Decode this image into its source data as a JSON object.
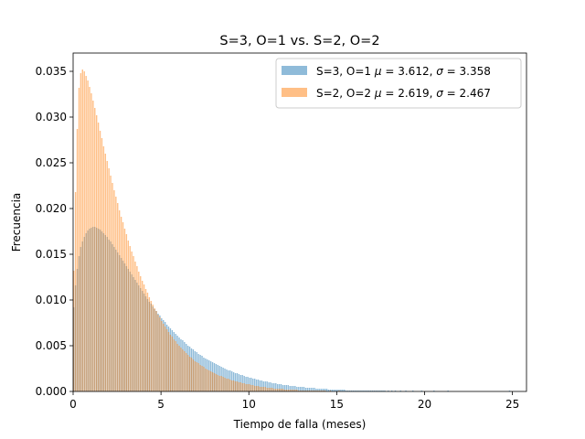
{
  "chart_data": {
    "type": "bar",
    "title": "S=3, O=1 vs. S=2, O=2",
    "xlabel": "Tiempo de falla (meses)",
    "ylabel": "Frecuencia",
    "xlim": [
      0,
      25.8
    ],
    "ylim": [
      0,
      0.037
    ],
    "xticks": [
      0,
      5,
      10,
      15,
      20,
      25
    ],
    "yticks": [
      0.0,
      0.005,
      0.01,
      0.015,
      0.02,
      0.025,
      0.03,
      0.035
    ],
    "xtick_labels": [
      "0",
      "5",
      "10",
      "15",
      "20",
      "25"
    ],
    "ytick_labels": [
      "0.000",
      "0.005",
      "0.010",
      "0.015",
      "0.020",
      "0.025",
      "0.030",
      "0.035"
    ],
    "bin_width": 0.1,
    "legend_position": "top-right",
    "series": [
      {
        "name": "S=3, O=1 μ = 3.612,  σ = 3.358",
        "label_prefix": "S=3, O=1 ",
        "mu_label": "μ",
        "mu_value": "= 3.612,",
        "sigma_label": "σ",
        "sigma_value": "= 3.358",
        "color": "#1f77b4",
        "opacity": 0.5,
        "values": [
          0.0092,
          0.0116,
          0.0134,
          0.0148,
          0.0158,
          0.0164,
          0.0169,
          0.0173,
          0.0176,
          0.0178,
          0.0179,
          0.018,
          0.018,
          0.0179,
          0.0178,
          0.0177,
          0.0175,
          0.0173,
          0.0171,
          0.0169,
          0.0166,
          0.0164,
          0.0161,
          0.0158,
          0.0155,
          0.0152,
          0.0149,
          0.0146,
          0.0143,
          0.014,
          0.0137,
          0.0134,
          0.0131,
          0.0128,
          0.0125,
          0.0122,
          0.0119,
          0.0116,
          0.0113,
          0.011,
          0.0107,
          0.0104,
          0.0101,
          0.0098,
          0.0096,
          0.0093,
          0.009,
          0.0088,
          0.0085,
          0.0083,
          0.008,
          0.0078,
          0.0076,
          0.0073,
          0.0071,
          0.0069,
          0.0067,
          0.0065,
          0.0063,
          0.0061,
          0.0059,
          0.0057,
          0.0056,
          0.0054,
          0.0052,
          0.005,
          0.0049,
          0.0047,
          0.0046,
          0.0044,
          0.0043,
          0.0041,
          0.004,
          0.0039,
          0.0037,
          0.0036,
          0.0035,
          0.0034,
          0.0033,
          0.0032,
          0.0031,
          0.003,
          0.0029,
          0.0028,
          0.0027,
          0.0026,
          0.0025,
          0.0024,
          0.0023,
          0.0023,
          0.0022,
          0.0021,
          0.002,
          0.002,
          0.0019,
          0.0018,
          0.0018,
          0.0017,
          0.0016,
          0.0016,
          0.0015,
          0.0015,
          0.0014,
          0.0014,
          0.0013,
          0.0013,
          0.0012,
          0.0012,
          0.0011,
          0.0011,
          0.0011,
          0.001,
          0.001,
          0.0009,
          0.0009,
          0.0009,
          0.0008,
          0.0008,
          0.0008,
          0.0007,
          0.0007,
          0.0007,
          0.0007,
          0.0006,
          0.0006,
          0.0006,
          0.0006,
          0.0005,
          0.0005,
          0.0005,
          0.0005,
          0.0005,
          0.0004,
          0.0004,
          0.0004,
          0.0004,
          0.0004,
          0.0004,
          0.0003,
          0.0003,
          0.0003,
          0.0003,
          0.0003,
          0.0003,
          0.0003,
          0.0002,
          0.0002,
          0.0002,
          0.0002,
          0.0002,
          0.0002,
          0.0002,
          0.0002,
          0.0002,
          0.0002,
          0.0001,
          0.0001,
          0.0001,
          0.0001,
          0.0001,
          0.0001,
          0.0001,
          0.0001,
          0.0001,
          0.0001,
          0.0001,
          0.0001,
          0.0001,
          0.0001,
          0.0001,
          0.0001,
          0.0001,
          0.0001,
          0.0001,
          0.0001,
          0.0001,
          0.0001,
          0.0001,
          0.0,
          0.0001,
          0.0,
          0.0001,
          0.0,
          0.0001,
          0.0,
          0.0,
          0.0001,
          0.0,
          0.0,
          0.0001,
          0.0,
          0.0,
          0.0,
          0.0001,
          0.0,
          0.0,
          0.0,
          0.0,
          0.0001,
          0.0,
          0.0,
          0.0,
          0.0,
          0.0,
          0.0,
          0.0001,
          0.0,
          0.0,
          0.0,
          0.0,
          0.0,
          0.0,
          0.0,
          0.0001,
          0.0,
          0.0,
          0.0,
          0.0,
          0.0,
          0.0,
          0.0,
          0.0,
          0.0,
          0.0,
          0.0,
          0.0,
          0.0,
          0.0,
          0.0,
          0.0,
          0.0,
          0.0,
          0.0,
          0.0,
          0.0,
          0.0,
          0.0,
          0.0,
          0.0,
          0.0,
          0.0,
          0.0,
          0.0,
          0.0,
          0.0,
          0.0,
          0.0,
          0.0,
          0.0001,
          0.0,
          0.0,
          0.0,
          0.0,
          0.0,
          0.0,
          0.0,
          0.0,
          0.0,
          0.0
        ]
      },
      {
        "name": "S=2, O=2 μ = 2.619,  σ = 2.467",
        "label_prefix": "S=2, O=2 ",
        "mu_label": "μ",
        "mu_value": "= 2.619,",
        "sigma_label": "σ",
        "sigma_value": "= 2.467",
        "color": "#ff7f0e",
        "opacity": 0.5,
        "values": [
          0.0132,
          0.0218,
          0.0287,
          0.0332,
          0.0348,
          0.0352,
          0.035,
          0.0345,
          0.034,
          0.0333,
          0.0326,
          0.0318,
          0.031,
          0.0302,
          0.0294,
          0.0285,
          0.0277,
          0.0268,
          0.026,
          0.0252,
          0.0244,
          0.0236,
          0.0228,
          0.022,
          0.0213,
          0.0206,
          0.0198,
          0.0191,
          0.0185,
          0.0178,
          0.0172,
          0.0165,
          0.0159,
          0.0153,
          0.0148,
          0.0142,
          0.0137,
          0.0131,
          0.0126,
          0.0121,
          0.0117,
          0.0112,
          0.0108,
          0.0103,
          0.0099,
          0.0095,
          0.0091,
          0.0088,
          0.0084,
          0.0081,
          0.0077,
          0.0074,
          0.0071,
          0.0068,
          0.0065,
          0.0062,
          0.006,
          0.0057,
          0.0055,
          0.0052,
          0.005,
          0.0048,
          0.0046,
          0.0044,
          0.0042,
          0.004,
          0.0038,
          0.0037,
          0.0035,
          0.0033,
          0.0032,
          0.0031,
          0.0029,
          0.0028,
          0.0027,
          0.0025,
          0.0024,
          0.0023,
          0.0022,
          0.0021,
          0.002,
          0.0019,
          0.0018,
          0.0017,
          0.0017,
          0.0016,
          0.0015,
          0.0014,
          0.0014,
          0.0013,
          0.0012,
          0.0012,
          0.0011,
          0.0011,
          0.001,
          0.001,
          0.0009,
          0.0009,
          0.0008,
          0.0008,
          0.0008,
          0.0007,
          0.0007,
          0.0006,
          0.0006,
          0.0006,
          0.0005,
          0.0005,
          0.0005,
          0.0005,
          0.0004,
          0.0004,
          0.0004,
          0.0004,
          0.0003,
          0.0003,
          0.0003,
          0.0003,
          0.0003,
          0.0003,
          0.0002,
          0.0002,
          0.0002,
          0.0002,
          0.0002,
          0.0002,
          0.0002,
          0.0002,
          0.0001,
          0.0001,
          0.0001,
          0.0001,
          0.0001,
          0.0001,
          0.0001,
          0.0001,
          0.0001,
          0.0001,
          0.0001,
          0.0001,
          0.0001,
          0.0001,
          0.0001,
          0.0001,
          0.0,
          0.0,
          0.0001,
          0.0,
          0.0,
          0.0,
          0.0,
          0.0001,
          0.0,
          0.0,
          0.0,
          0.0,
          0.0,
          0.0,
          0.0,
          0.0,
          0.0,
          0.0,
          0.0,
          0.0,
          0.0,
          0.0,
          0.0,
          0.0,
          0.0,
          0.0,
          0.0,
          0.0,
          0.0,
          0.0,
          0.0,
          0.0,
          0.0,
          0.0,
          0.0,
          0.0,
          0.0,
          0.0,
          0.0,
          0.0,
          0.0,
          0.0,
          0.0,
          0.0,
          0.0,
          0.0,
          0.0,
          0.0,
          0.0,
          0.0,
          0.0,
          0.0
        ]
      }
    ]
  }
}
